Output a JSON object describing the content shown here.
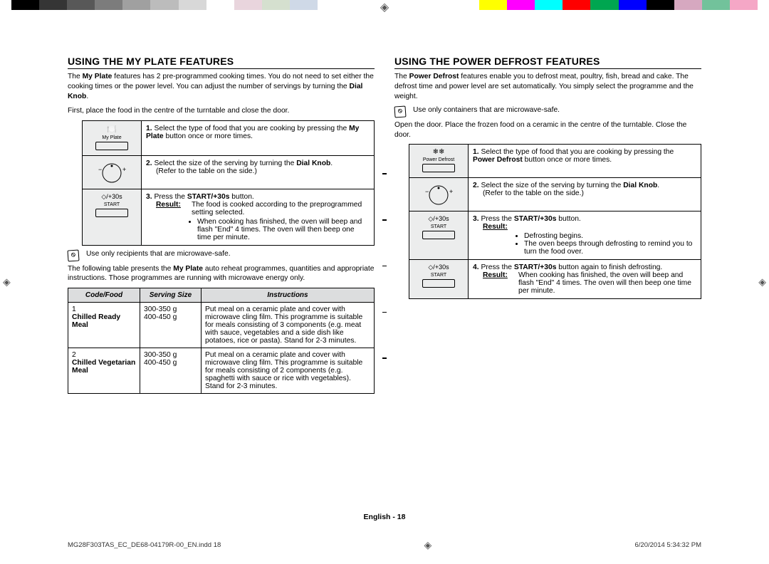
{
  "colorbar_left": [
    "#000000",
    "#353535",
    "#585858",
    "#7c7c7c",
    "#a0a0a0",
    "#bcbcbc",
    "#d8d8d8",
    "#ffffff",
    "#e9d5dd",
    "#d5e0cf",
    "#cfd9e7"
  ],
  "colorbar_right": [
    "#ffffff",
    "#ffff00",
    "#ff00ff",
    "#00ffff",
    "#ff0000",
    "#00a650",
    "#0000ff",
    "#000000",
    "#d6a8c0",
    "#72c29b",
    "#f5a7c6"
  ],
  "left": {
    "heading": "USING THE MY PLATE FEATURES",
    "intro1a": "The ",
    "intro1_bold1": "My Plate",
    "intro1b": " features has 2 pre-programmed cooking times. You do not need to set either the cooking times or the power level. You can adjust the number of servings by turning the ",
    "intro1_bold2": "Dial Knob",
    "intro1c": ".",
    "intro2": "First, place the food in the centre of the turntable and close the door.",
    "steps": [
      {
        "icon": "myplate",
        "label": "My Plate",
        "num": "1.",
        "txt_a": "Select the type of food that you are cooking by pressing the ",
        "txt_bold": "My Plate",
        "txt_b": " button once or more times."
      },
      {
        "icon": "knob",
        "label": "",
        "num": "2.",
        "txt_a": "Select the size of the serving by turning the ",
        "txt_bold": "Dial Knob",
        "txt_b": ".",
        "sub": "(Refer to the table on the side.)"
      },
      {
        "icon": "start",
        "label": "START",
        "num": "3.",
        "txt_a": "Press the ",
        "txt_bold": "START/+30s",
        "txt_b": " button.",
        "result_label": "Result:",
        "result_txt": "The food is cooked according to the preprogrammed setting selected.",
        "bullet": "When cooking has finished, the oven will beep and flash \"End\" 4 times. The oven will then beep one time per minute."
      }
    ],
    "note": "Use only recipients that are microwave-safe.",
    "programs_intro_a": "The following table presents the ",
    "programs_intro_bold": "My Plate",
    "programs_intro_b": " auto reheat programmes, quantities and appropriate instructions. Those programmes are running with microwave energy only.",
    "programs": {
      "headers": [
        "Code/Food",
        "Serving Size",
        "Instructions"
      ],
      "rows": [
        {
          "code_num": "1",
          "code_name": "Chilled Ready Meal",
          "size": "300-350 g\n400-450 g",
          "instr": "Put meal on a ceramic plate and cover with microwave cling film. This programme is suitable for meals consisting of 3 components (e.g. meat with sauce, vegetables and a side dish like potatoes, rice or pasta). Stand for 2-3 minutes."
        },
        {
          "code_num": "2",
          "code_name": "Chilled Vegetarian Meal",
          "size": "300-350 g\n400-450 g",
          "instr": "Put meal on a ceramic plate and cover with microwave cling film. This programme is suitable for meals consisting of 2 components (e.g. spaghetti with sauce or rice with vegetables). Stand for 2-3 minutes."
        }
      ]
    }
  },
  "right": {
    "heading": "USING THE POWER DEFROST FEATURES",
    "intro1a": "The ",
    "intro1_bold1": "Power Defrost",
    "intro1b": " features enable you to defrost meat, poultry, fish, bread and cake. The defrost time and power level are set automatically. You simply select the programme and the weight.",
    "note": "Use only containers that are microwave-safe.",
    "intro2": "Open the door. Place the frozen food on a ceramic in the centre of the turntable. Close the door.",
    "steps": [
      {
        "icon": "defrost",
        "label": "Power Defrost",
        "num": "1.",
        "txt_a": "Select the type of food that you are cooking by pressing the ",
        "txt_bold": "Power Defrost",
        "txt_b": " button once or more times."
      },
      {
        "icon": "knob",
        "label": "",
        "num": "2.",
        "txt_a": "Select the size of the serving by turning the ",
        "txt_bold": "Dial Knob",
        "txt_b": ".",
        "sub": "(Refer to the table on the side.)"
      },
      {
        "icon": "start",
        "label": "START",
        "num": "3.",
        "txt_a": "Press the ",
        "txt_bold": "START/+30s",
        "txt_b": " button.",
        "result_label": "Result:",
        "bullets": [
          "Defrosting begins.",
          "The oven beeps through defrosting to remind you to turn the food over."
        ]
      },
      {
        "icon": "start",
        "label": "START",
        "num": "4.",
        "txt_a": "Press the ",
        "txt_bold": "START/+30s",
        "txt_b": " button again to finish defrosting.",
        "result_label": "Result:",
        "result_txt": "When cooking has finished, the oven will beep and flash \"End\" 4 times. The oven will then beep one time per minute."
      }
    ]
  },
  "footer": {
    "center": "English - 18",
    "file": "MG28F303TAS_EC_DE68-04179R-00_EN.indd   18",
    "date": "6/20/2014   5:34:32 PM"
  }
}
